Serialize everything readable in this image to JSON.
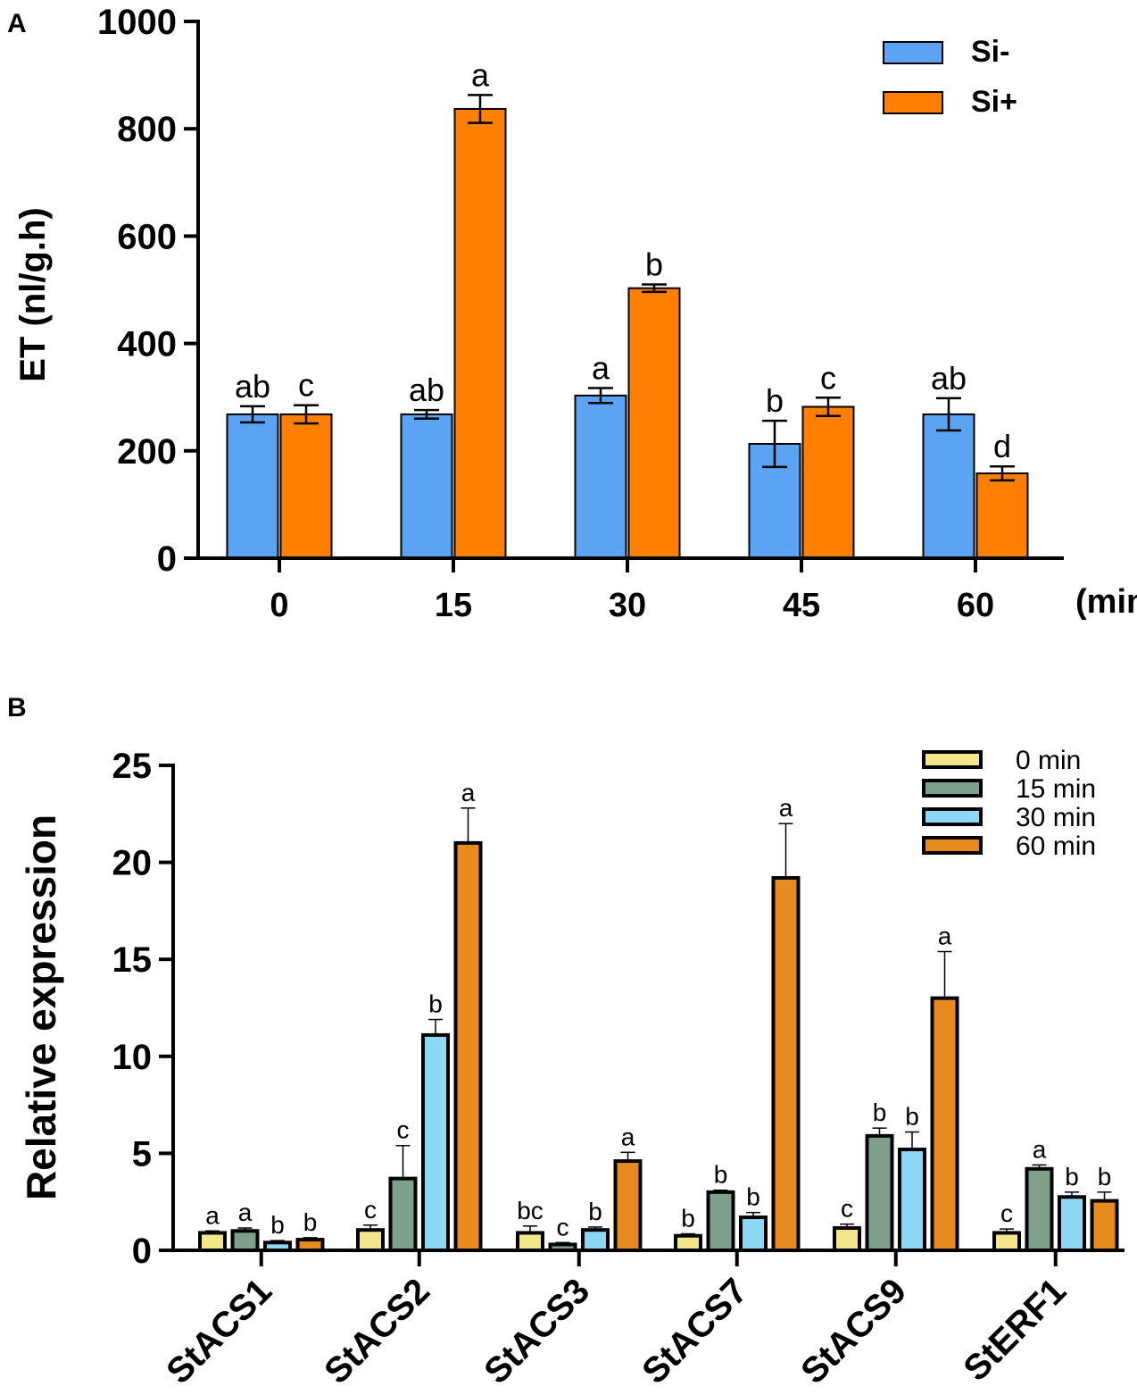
{
  "chart_data": [
    {
      "panel": "A",
      "type": "bar",
      "title": "",
      "xlabel": "(min)",
      "ylabel": "ET (nl/g.h)",
      "ylim": [
        0,
        1000
      ],
      "yticks": [
        0,
        200,
        400,
        600,
        800,
        1000
      ],
      "categories": [
        "0",
        "15",
        "30",
        "45",
        "60"
      ],
      "series": [
        {
          "name": "Si-",
          "color": "#5BA4F3",
          "values": [
            268,
            268,
            303,
            213,
            268
          ],
          "errors": [
            15,
            8,
            14,
            43,
            30
          ],
          "letters": [
            "ab",
            "ab",
            "a",
            "b",
            "ab"
          ]
        },
        {
          "name": "Si+",
          "color": "#FF8000",
          "values": [
            268,
            837,
            503,
            282,
            158
          ],
          "errors": [
            17,
            26,
            7,
            17,
            13
          ],
          "letters": [
            "c",
            "a",
            "b",
            "c",
            "d"
          ]
        }
      ],
      "legend": "top-right"
    },
    {
      "panel": "B",
      "type": "bar",
      "title": "",
      "xlabel": "",
      "ylabel": "Relative expression",
      "ylim": [
        0,
        25
      ],
      "yticks": [
        0,
        5,
        10,
        15,
        20,
        25
      ],
      "categories": [
        "StACS1",
        "StACS2",
        "StACS3",
        "StACS7",
        "StACS9",
        "StERF1"
      ],
      "series": [
        {
          "name": "0 min",
          "color": "#F2E78A",
          "values": [
            0.9,
            1.05,
            0.9,
            0.75,
            1.15,
            0.9
          ],
          "errors": [
            0.1,
            0.25,
            0.35,
            0.1,
            0.2,
            0.2
          ],
          "letters": [
            "a",
            "c",
            "bc",
            "b",
            "c",
            "c"
          ]
        },
        {
          "name": "15 min",
          "color": "#7FA08B",
          "values": [
            1.0,
            3.7,
            0.3,
            3.0,
            5.9,
            4.2
          ],
          "errors": [
            0.15,
            1.7,
            0.1,
            0.1,
            0.4,
            0.2
          ],
          "letters": [
            "a",
            "c",
            "c",
            "b",
            "b",
            "a"
          ]
        },
        {
          "name": "30 min",
          "color": "#8FD8F5",
          "values": [
            0.4,
            11.1,
            1.05,
            1.7,
            5.2,
            2.75
          ],
          "errors": [
            0.1,
            0.8,
            0.15,
            0.25,
            0.9,
            0.25
          ],
          "letters": [
            "b",
            "b",
            "b",
            "b",
            "b",
            "b"
          ]
        },
        {
          "name": "60 min",
          "color": "#E88B1E",
          "values": [
            0.55,
            21.0,
            4.6,
            19.2,
            13.0,
            2.55
          ],
          "errors": [
            0.1,
            1.8,
            0.45,
            2.8,
            2.4,
            0.45
          ],
          "letters": [
            "b",
            "a",
            "a",
            "a",
            "a",
            "b"
          ]
        }
      ],
      "legend": "top-right"
    }
  ]
}
